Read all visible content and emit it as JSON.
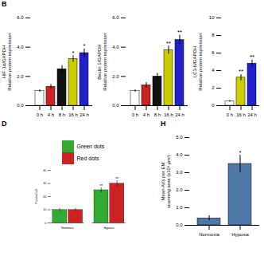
{
  "chart_data": [
    {
      "type": "bar",
      "title": "B",
      "categories": [
        "0 h",
        "4 h",
        "8 h",
        "16 h",
        "24 h"
      ],
      "values": [
        1.0,
        1.3,
        2.5,
        3.2,
        3.6
      ],
      "errors": [
        0.08,
        0.15,
        0.25,
        0.22,
        0.28
      ],
      "colors": [
        "#ffffff",
        "#cc2222",
        "#111111",
        "#cccc00",
        "#2222cc"
      ],
      "ylabel": "HIF-1α/GAPDH\nRelative protein expression",
      "ylim": [
        0,
        6
      ],
      "yticks": [
        0,
        2,
        4,
        6
      ],
      "annotations": [
        null,
        null,
        null,
        "*",
        "*"
      ]
    },
    {
      "type": "bar",
      "categories": [
        "0 h",
        "4 h",
        "8 h",
        "16 h",
        "24 h"
      ],
      "values": [
        1.0,
        1.4,
        2.0,
        3.8,
        4.5
      ],
      "errors": [
        0.08,
        0.18,
        0.22,
        0.28,
        0.32
      ],
      "colors": [
        "#ffffff",
        "#cc2222",
        "#111111",
        "#cccc00",
        "#2222cc"
      ],
      "ylabel": "Beclin 1/GAPDH\nRelative protein expression",
      "ylim": [
        0,
        6
      ],
      "yticks": [
        0,
        2,
        4,
        6
      ],
      "annotations": [
        null,
        null,
        null,
        "**",
        "**"
      ]
    },
    {
      "type": "bar",
      "categories": [
        "0 h",
        "16 h",
        "24 h"
      ],
      "values": [
        0.5,
        3.2,
        4.8
      ],
      "errors": [
        0.1,
        0.35,
        0.4
      ],
      "colors": [
        "#ffffff",
        "#cccc00",
        "#2222cc"
      ],
      "ylabel": "LC3-II/GAPDH\nRelative protein expression",
      "ylim": [
        0,
        10
      ],
      "yticks": [
        0,
        2,
        4,
        6,
        8,
        10
      ],
      "annotations": [
        null,
        "**",
        "**"
      ]
    },
    {
      "type": "bar",
      "title": "D",
      "categories": [
        "Normoxia",
        "Hypoxia"
      ],
      "series": [
        {
          "name": "Green dots",
          "color": "#33aa33",
          "values": [
            10,
            25
          ],
          "errors": [
            1.2,
            1.8
          ],
          "annotations": [
            null,
            "**"
          ]
        },
        {
          "name": "Red dots",
          "color": "#cc2222",
          "values": [
            10,
            30
          ],
          "errors": [
            1.2,
            2.2
          ],
          "annotations": [
            null,
            "**"
          ]
        }
      ],
      "ylabel": "Puncta/Cell",
      "ylim": [
        0,
        40
      ],
      "yticks": [
        0,
        10,
        20,
        30,
        40
      ],
      "legend": "top"
    },
    {
      "type": "bar",
      "title": "H",
      "categories": [
        "Normoxia",
        "Hypoxia"
      ],
      "values": [
        0.4,
        3.5
      ],
      "errors": [
        0.15,
        0.5
      ],
      "ylabel": "Mean AVs per EM\nscanning area (x10³ μm²)",
      "ylim": [
        0,
        5
      ],
      "yticks": [
        0,
        1,
        2,
        3,
        4,
        5
      ],
      "annotations": [
        null,
        "*"
      ]
    }
  ]
}
